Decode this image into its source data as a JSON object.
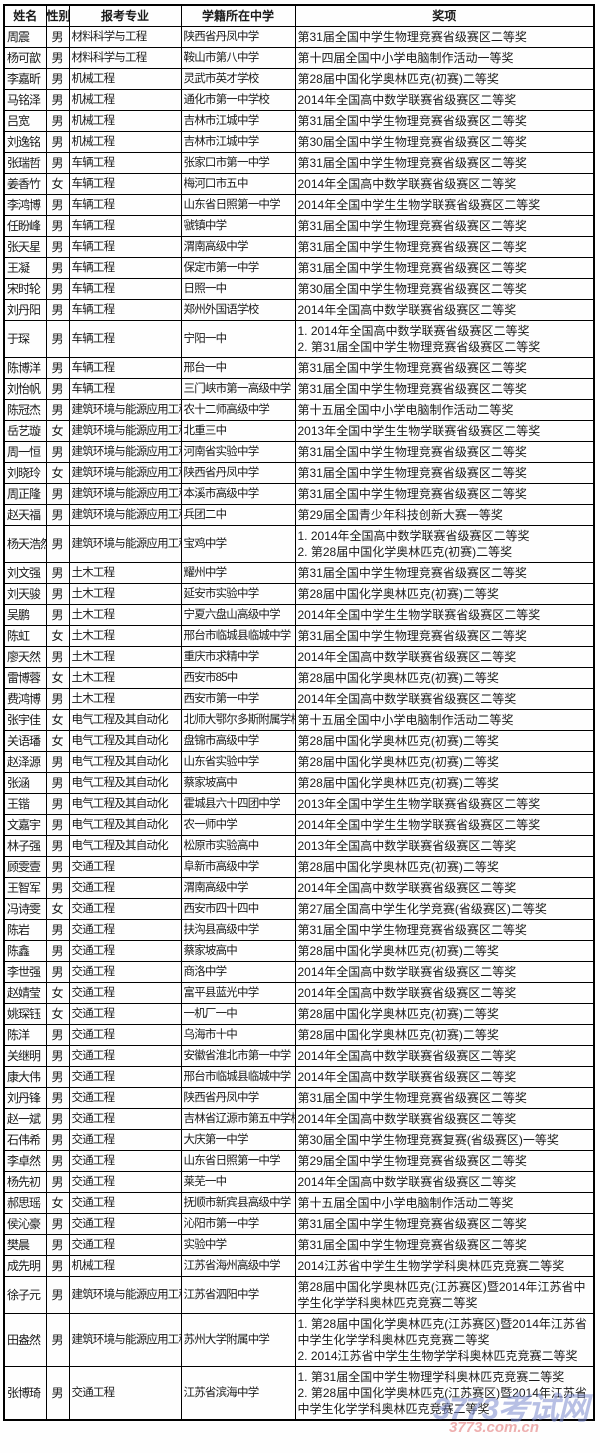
{
  "watermark": {
    "logo_text": "3773考试网",
    "url_text": "3773.com.cn",
    "logo_color": "#7c8acd",
    "url_color": "#e06e6e"
  },
  "table": {
    "headers": [
      "姓名",
      "性别",
      "报考专业",
      "学籍所在中学",
      "奖项"
    ],
    "rows": [
      {
        "name": "周震",
        "gender": "男",
        "major": "材料科学与工程",
        "school": "陕西省丹凤中学",
        "award": "第31届全国中学生物理竞赛省级赛区二等奖"
      },
      {
        "name": "杨可歆",
        "gender": "男",
        "major": "材料科学与工程",
        "school": "鞍山市第八中学",
        "award": "第十四届全国中小学电脑制作活动一等奖"
      },
      {
        "name": "李嘉昕",
        "gender": "男",
        "major": "机械工程",
        "school": "灵武市英才学校",
        "award": "第28届中国化学奥林匹克(初赛)二等奖"
      },
      {
        "name": "马铭泽",
        "gender": "男",
        "major": "机械工程",
        "school": "通化市第一中学校",
        "award": "2014年全国高中数学联赛省级赛区二等奖"
      },
      {
        "name": "吕宽",
        "gender": "男",
        "major": "机械工程",
        "school": "吉林市江城中学",
        "award": "第31届全国中学生物理竞赛省级赛区二等奖"
      },
      {
        "name": "刘逸铭",
        "gender": "男",
        "major": "机械工程",
        "school": "吉林市江城中学",
        "award": "第30届全国中学生物理竞赛省级赛区二等奖"
      },
      {
        "name": "张瑞哲",
        "gender": "男",
        "major": "车辆工程",
        "school": "张家口市第一中学",
        "award": "第31届全国中学生物理竞赛省级赛区二等奖"
      },
      {
        "name": "姜香竹",
        "gender": "女",
        "major": "车辆工程",
        "school": "梅河口市五中",
        "award": "2014年全国高中数学联赛省级赛区二等奖"
      },
      {
        "name": "李鸿博",
        "gender": "男",
        "major": "车辆工程",
        "school": "山东省日照第一中学",
        "award": "2014年全国中学生生物学联赛省级赛区二等奖"
      },
      {
        "name": "任盼峰",
        "gender": "男",
        "major": "车辆工程",
        "school": "虢镇中学",
        "award": "第31届全国中学生物理竞赛省级赛区二等奖"
      },
      {
        "name": "张天星",
        "gender": "男",
        "major": "车辆工程",
        "school": "渭南高级中学",
        "award": "第31届全国中学生物理竞赛省级赛区二等奖"
      },
      {
        "name": "王凝",
        "gender": "男",
        "major": "车辆工程",
        "school": "保定市第一中学",
        "award": "第31届全国中学生物理竞赛省级赛区二等奖"
      },
      {
        "name": "宋时轮",
        "gender": "男",
        "major": "车辆工程",
        "school": "日照一中",
        "award": "第30届全国中学生物理竞赛省级赛区二等奖"
      },
      {
        "name": "刘丹阳",
        "gender": "男",
        "major": "车辆工程",
        "school": "郑州外国语学校",
        "award": "2014年全国高中数学联赛省级赛区二等奖"
      },
      {
        "name": "于琛",
        "gender": "男",
        "major": "车辆工程",
        "school": "宁阳一中",
        "award": "1. 2014年全国高中数学联赛省级赛区二等奖\n2. 第31届全国中学生物理竞赛省级赛区二等奖"
      },
      {
        "name": "陈博洋",
        "gender": "男",
        "major": "车辆工程",
        "school": "邢台一中",
        "award": "第31届全国中学生物理竞赛省级赛区二等奖"
      },
      {
        "name": "刘怡帆",
        "gender": "男",
        "major": "车辆工程",
        "school": "三门峡市第一高级中学",
        "award": "第31届全国中学生物理竞赛省级赛区二等奖"
      },
      {
        "name": "陈冠杰",
        "gender": "男",
        "major": "建筑环境与能源应用工程",
        "school": "农十二师高级中学",
        "award": "第十五届全国中小学电脑制作活动二等奖"
      },
      {
        "name": "岳艺璇",
        "gender": "女",
        "major": "建筑环境与能源应用工程",
        "school": "北重三中",
        "award": "2013年全国中学生生物学联赛省级赛区二等奖"
      },
      {
        "name": "周一恒",
        "gender": "男",
        "major": "建筑环境与能源应用工程",
        "school": "河南省实验中学",
        "award": "第31届全国中学生物理竞赛省级赛区二等奖"
      },
      {
        "name": "刘晓玲",
        "gender": "女",
        "major": "建筑环境与能源应用工程",
        "school": "陕西省丹凤中学",
        "award": "第31届全国中学生物理竞赛省级赛区二等奖"
      },
      {
        "name": "周正隆",
        "gender": "男",
        "major": "建筑环境与能源应用工程",
        "school": "本溪市高级中学",
        "award": "第31届全国中学生物理竞赛省级赛区二等奖"
      },
      {
        "name": "赵天福",
        "gender": "男",
        "major": "建筑环境与能源应用工程",
        "school": "兵团二中",
        "award": "第29届全国青少年科技创新大赛一等奖"
      },
      {
        "name": "杨天浩然",
        "gender": "男",
        "major": "建筑环境与能源应用工程",
        "school": "宝鸡中学",
        "award": "1. 2014年全国高中数学联赛省级赛区二等奖\n2. 第28届中国化学奥林匹克(初赛)二等奖"
      },
      {
        "name": "刘文强",
        "gender": "男",
        "major": "土木工程",
        "school": "耀州中学",
        "award": "第31届全国中学生物理竞赛省级赛区二等奖"
      },
      {
        "name": "刘天骏",
        "gender": "男",
        "major": "土木工程",
        "school": "延安市实验中学",
        "award": "第28届中国化学奥林匹克(初赛)二等奖"
      },
      {
        "name": "吴鹏",
        "gender": "男",
        "major": "土木工程",
        "school": "宁夏六盘山高级中学",
        "award": "2014年全国中学生生物学联赛省级赛区二等奖"
      },
      {
        "name": "陈虹",
        "gender": "女",
        "major": "土木工程",
        "school": "邢台市临城县临城中学",
        "award": "第31届全国中学生物理竞赛省级赛区二等奖"
      },
      {
        "name": "廖天然",
        "gender": "男",
        "major": "土木工程",
        "school": "重庆市求精中学",
        "award": "2014年全国高中数学联赛省级赛区二等奖"
      },
      {
        "name": "雷博蓉",
        "gender": "女",
        "major": "土木工程",
        "school": "西安市85中",
        "award": "第28届中国化学奥林匹克(初赛)二等奖"
      },
      {
        "name": "费鸿博",
        "gender": "男",
        "major": "土木工程",
        "school": "西安市第一中学",
        "award": "2014年全国高中数学联赛省级赛区二等奖"
      },
      {
        "name": "张宇佳",
        "gender": "女",
        "major": "电气工程及其自动化",
        "school": "北师大鄂尔多斯附属学校",
        "award": "第十五届全国中小学电脑制作活动二等奖"
      },
      {
        "name": "关语璠",
        "gender": "女",
        "major": "电气工程及其自动化",
        "school": "盘锦市高级中学",
        "award": "第28届中国化学奥林匹克(初赛)二等奖"
      },
      {
        "name": "赵泽源",
        "gender": "男",
        "major": "电气工程及其自动化",
        "school": "山东省实验中学",
        "award": "第28届中国化学奥林匹克(初赛)二等奖"
      },
      {
        "name": "张涵",
        "gender": "男",
        "major": "电气工程及其自动化",
        "school": "蔡家坡高中",
        "award": "第28届中国化学奥林匹克(初赛)二等奖"
      },
      {
        "name": "王锴",
        "gender": "男",
        "major": "电气工程及其自动化",
        "school": "霍城县六十四团中学",
        "award": "2013年全国中学生生物学联赛省级赛区二等奖"
      },
      {
        "name": "文嘉宇",
        "gender": "男",
        "major": "电气工程及其自动化",
        "school": "农一师中学",
        "award": "2014年全国中学生生物学联赛省级赛区二等奖"
      },
      {
        "name": "林子强",
        "gender": "男",
        "major": "电气工程及其自动化",
        "school": "松原市实验高中",
        "award": "2013年全国高中数学联赛省级赛区二等奖"
      },
      {
        "name": "顾雯壹",
        "gender": "男",
        "major": "交通工程",
        "school": "阜新市高级中学",
        "award": "第28届中国化学奥林匹克(初赛)二等奖"
      },
      {
        "name": "王智军",
        "gender": "男",
        "major": "交通工程",
        "school": "渭南高级中学",
        "award": "2014年全国高中数学联赛省级赛区二等奖"
      },
      {
        "name": "冯诗雯",
        "gender": "女",
        "major": "交通工程",
        "school": "西安市四十四中",
        "award": "第27届全国高中学生化学竞赛(省级赛区)二等奖"
      },
      {
        "name": "陈岩",
        "gender": "男",
        "major": "交通工程",
        "school": "扶沟县高级中学",
        "award": "第31届全国中学生物理竞赛省级赛区二等奖"
      },
      {
        "name": "陈鑫",
        "gender": "男",
        "major": "交通工程",
        "school": "蔡家坡高中",
        "award": "第28届中国化学奥林匹克(初赛)二等奖"
      },
      {
        "name": "李世强",
        "gender": "男",
        "major": "交通工程",
        "school": "商洛中学",
        "award": "2014年全国高中数学联赛省级赛区二等奖"
      },
      {
        "name": "赵婧莹",
        "gender": "女",
        "major": "交通工程",
        "school": "富平县蓝光中学",
        "award": "2014年全国高中数学联赛省级赛区二等奖"
      },
      {
        "name": "姚琛钰",
        "gender": "女",
        "major": "交通工程",
        "school": "一机厂一中",
        "award": "第28届中国化学奥林匹克(初赛)二等奖"
      },
      {
        "name": "陈洋",
        "gender": "男",
        "major": "交通工程",
        "school": "乌海市十中",
        "award": "第28届中国化学奥林匹克(初赛)二等奖"
      },
      {
        "name": "关继明",
        "gender": "男",
        "major": "交通工程",
        "school": "安徽省淮北市第一中学",
        "award": "2014年全国高中数学联赛省级赛区二等奖"
      },
      {
        "name": "康大伟",
        "gender": "男",
        "major": "交通工程",
        "school": "邢台市临城县临城中学",
        "award": "2014年全国高中数学联赛省级赛区二等奖"
      },
      {
        "name": "刘丹锋",
        "gender": "男",
        "major": "交通工程",
        "school": "陕西省丹凤中学",
        "award": "第31届全国中学生物理竞赛省级赛区二等奖"
      },
      {
        "name": "赵一斌",
        "gender": "男",
        "major": "交通工程",
        "school": "吉林省辽源市第五中学校",
        "award": "2014年全国高中数学联赛省级赛区二等奖"
      },
      {
        "name": "石伟希",
        "gender": "男",
        "major": "交通工程",
        "school": "大庆第一中学",
        "award": "第30届全国中学生物理竞赛复赛(省级赛区)一等奖"
      },
      {
        "name": "李卓然",
        "gender": "男",
        "major": "交通工程",
        "school": "山东省日照第一中学",
        "award": "第29届全国中学生物理竞赛省级赛区二等奖"
      },
      {
        "name": "杨先初",
        "gender": "男",
        "major": "交通工程",
        "school": "莱芜一中",
        "award": "2014年全国高中数学联赛省级赛区二等奖"
      },
      {
        "name": "郝思瑶",
        "gender": "女",
        "major": "交通工程",
        "school": "抚顺市新宾县高级中学",
        "award": "第十五届全国中小学电脑制作活动二等奖"
      },
      {
        "name": "侯沁豪",
        "gender": "男",
        "major": "交通工程",
        "school": "沁阳市第一中学",
        "award": "第31届全国中学生物理竞赛省级赛区二等奖"
      },
      {
        "name": "樊晨",
        "gender": "男",
        "major": "交通工程",
        "school": "实验中学",
        "award": "第31届全国中学生物理竞赛省级赛区二等奖"
      },
      {
        "name": "成先明",
        "gender": "男",
        "major": "机械工程",
        "school": "江苏省海州高级中学",
        "award": "2014江苏省中学生生物学学科奥林匹克竞赛二等奖"
      },
      {
        "name": "徐子元",
        "gender": "男",
        "major": "建筑环境与能源应用工程",
        "school": "江苏省泗阳中学",
        "award": "第28届中国化学奥林匹克(江苏赛区)暨2014年江苏省中学生化学学科奥林匹克竞赛二等奖"
      },
      {
        "name": "田盎然",
        "gender": "男",
        "major": "建筑环境与能源应用工程",
        "school": "苏州大学附属中学",
        "award": "1. 第28届中国化学奥林匹克(江苏赛区)暨2014年江苏省中学生化学学科奥林匹克竞赛二等奖\n2. 2014江苏省中学生生物学学科奥林匹克竞赛二等奖"
      },
      {
        "name": "张博琦",
        "gender": "男",
        "major": "交通工程",
        "school": "江苏省滨海中学",
        "award": "1. 第31届全国中学生物理学科奥林匹克竞赛二等奖\n2. 第28届中国化学奥林匹克(江苏赛区)暨2014年江苏省中学生化学学科奥林匹克竞赛二等奖"
      }
    ]
  }
}
